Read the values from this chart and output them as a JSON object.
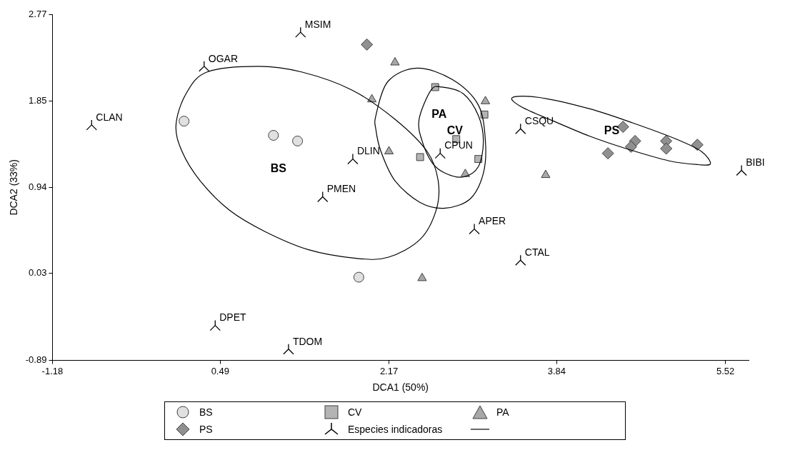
{
  "chart_data": {
    "type": "scatter",
    "xlabel": "DCA1 (50%)",
    "ylabel": "DCA2 (33%)",
    "xlim": [
      -1.18,
      5.75
    ],
    "xticks": [
      -1.18,
      0.49,
      2.17,
      3.84,
      5.52
    ],
    "ylim": [
      -0.89,
      2.77
    ],
    "yticks": [
      -0.89,
      0.03,
      0.94,
      1.85,
      2.77
    ],
    "grid": false,
    "legend": "bottom",
    "annotations": [
      "BS",
      "CV",
      "PA",
      "PS"
    ],
    "series": [
      {
        "name": "BS",
        "type": "scatter",
        "marker": "circle",
        "color": "#e0e0e0",
        "x": [
          0.13,
          1.02,
          1.26,
          1.87
        ],
        "values": [
          1.64,
          1.49,
          1.43,
          -0.01
        ]
      },
      {
        "name": "CV",
        "type": "scatter",
        "marker": "square",
        "color": "#b4b4b4",
        "x": [
          2.63,
          3.12,
          2.48,
          3.06,
          2.84
        ],
        "values": [
          2.0,
          1.71,
          1.26,
          1.24,
          1.45
        ]
      },
      {
        "name": "PA",
        "type": "scatter",
        "marker": "triangle",
        "color": "#a8a8a8",
        "x": [
          2.23,
          2.0,
          3.13,
          2.17,
          2.93,
          3.73,
          2.5
        ],
        "values": [
          2.26,
          1.87,
          1.85,
          1.32,
          1.08,
          1.07,
          -0.02
        ]
      },
      {
        "name": "PS",
        "type": "scatter",
        "marker": "diamond",
        "color": "#909090",
        "x": [
          1.95,
          4.5,
          4.62,
          4.35,
          4.58,
          4.93,
          4.93,
          5.24
        ],
        "values": [
          2.45,
          1.58,
          1.43,
          1.3,
          1.37,
          1.43,
          1.35,
          1.39
        ]
      },
      {
        "name": "Especies indicadoras",
        "type": "scatter",
        "marker": "cross",
        "color": "#000000",
        "x": [
          1.29,
          0.33,
          -0.79,
          1.81,
          1.51,
          2.68,
          3.48,
          5.68,
          3.02,
          3.48,
          0.44,
          1.17
        ],
        "values": [
          2.58,
          2.22,
          1.6,
          1.24,
          0.84,
          1.3,
          1.56,
          1.12,
          0.5,
          0.17,
          -0.52,
          -0.77
        ],
        "value_labels": [
          "MSIM",
          "OGAR",
          "CLAN",
          "DLIN",
          "PMEN",
          "CPUN",
          "CSQU",
          "BIBI",
          "APER",
          "CTAL",
          "DPET",
          "TDOM"
        ]
      }
    ]
  }
}
